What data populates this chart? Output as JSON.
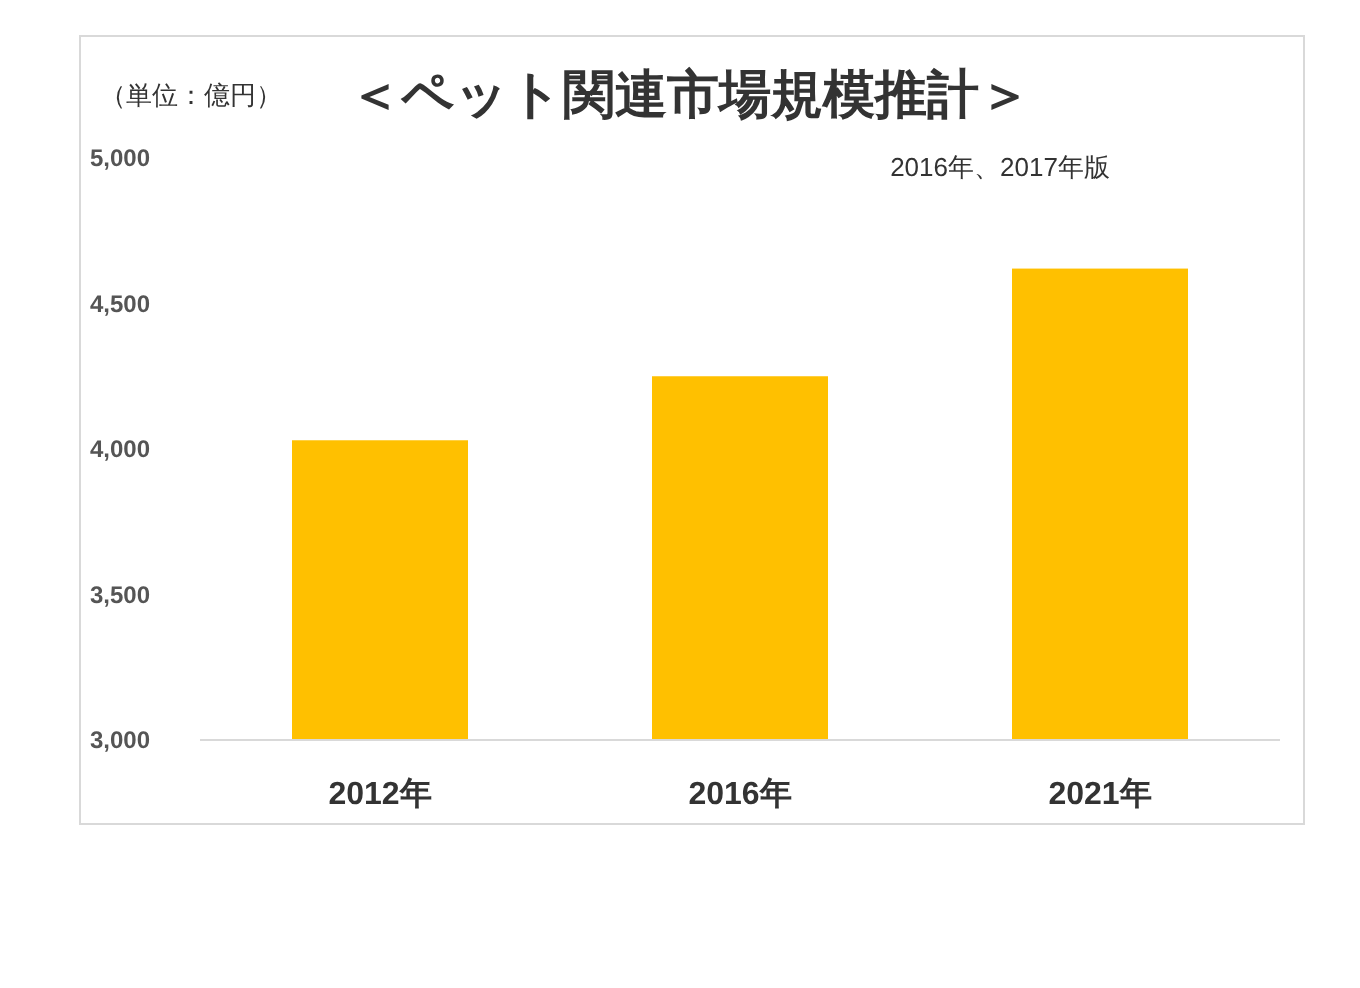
{
  "chart_data": {
    "type": "bar",
    "title": "＜ペット関連市場規模推計＞",
    "ylabel": "（単位：億円）",
    "annotations": [
      "2016年、2017年版"
    ],
    "categories": [
      "2012年",
      "2016年",
      "2021年"
    ],
    "series": [
      {
        "color": "#ffc000",
        "values": [
          4030,
          4250,
          4620
        ]
      }
    ],
    "ylim": [
      3000,
      5000
    ],
    "yticks": [
      {
        "value": 3000,
        "label": "3,000"
      },
      {
        "value": 3500,
        "label": "3,500"
      },
      {
        "value": 4000,
        "label": "4,000"
      },
      {
        "value": 4500,
        "label": "4,500"
      },
      {
        "value": 5000,
        "label": "5,000"
      }
    ],
    "grid": false
  }
}
